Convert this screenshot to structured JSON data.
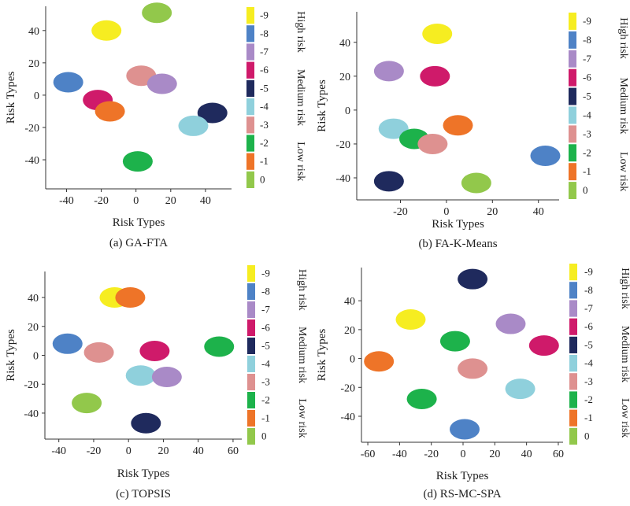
{
  "colors": {
    "level_0": "#92c84b",
    "level_1": "#ee7428",
    "level_2": "#1db24b",
    "level_3": "#de9190",
    "level_4": "#8fd0dc",
    "level_5": "#1f2a5d",
    "level_6": "#cf1a6a",
    "level_7": "#a98ac7",
    "level_8": "#4e82c6",
    "level_9": "#f6ed21"
  },
  "legend": {
    "ticks": [
      "0",
      "-1",
      "-2",
      "-3",
      "-4",
      "-5",
      "-6",
      "-7",
      "-8",
      "-9"
    ],
    "groups": [
      "Low risk",
      "Medium risk",
      "High risk"
    ]
  },
  "chart_data": [
    {
      "type": "scatter",
      "caption": "(a) GA-FTA",
      "xlabel": "Risk Types",
      "ylabel": "Risk Types",
      "xlim": [
        -52,
        55
      ],
      "ylim": [
        -58,
        55
      ],
      "xticks": [
        -40,
        -20,
        0,
        20,
        40
      ],
      "yticks": [
        -40,
        -20,
        0,
        20,
        40
      ],
      "points": [
        {
          "x": 12,
          "y": 51,
          "level": 0
        },
        {
          "x": -17,
          "y": 40,
          "level": 9
        },
        {
          "x": -39,
          "y": 8,
          "level": 8
        },
        {
          "x": 3,
          "y": 12,
          "level": 3
        },
        {
          "x": 15,
          "y": 7,
          "level": 7
        },
        {
          "x": -22,
          "y": -3,
          "level": 6
        },
        {
          "x": -15,
          "y": -10,
          "level": 1
        },
        {
          "x": 44,
          "y": -11,
          "level": 5
        },
        {
          "x": 33,
          "y": -19,
          "level": 4
        },
        {
          "x": 1,
          "y": -41,
          "level": 2
        }
      ]
    },
    {
      "type": "scatter",
      "caption": "(b) FA-K-Means",
      "xlabel": "Risk Types",
      "ylabel": "Risk Types",
      "xlim": [
        -39,
        49
      ],
      "ylim": [
        -53,
        58
      ],
      "xticks": [
        -20,
        0,
        20,
        40
      ],
      "yticks": [
        -40,
        -20,
        0,
        20,
        40
      ],
      "points": [
        {
          "x": -4,
          "y": 45,
          "level": 9
        },
        {
          "x": -25,
          "y": 23,
          "level": 7
        },
        {
          "x": -5,
          "y": 20,
          "level": 6
        },
        {
          "x": 5,
          "y": -9,
          "level": 1
        },
        {
          "x": -23,
          "y": -11,
          "level": 4
        },
        {
          "x": -14,
          "y": -17,
          "level": 2
        },
        {
          "x": -6,
          "y": -20,
          "level": 3
        },
        {
          "x": 43,
          "y": -27,
          "level": 8
        },
        {
          "x": -25,
          "y": -42,
          "level": 5
        },
        {
          "x": 13,
          "y": -43,
          "level": 0
        }
      ]
    },
    {
      "type": "scatter",
      "caption": "(c) TOPSIS",
      "xlabel": "Risk Types",
      "ylabel": "Risk Types",
      "xlim": [
        -48,
        65
      ],
      "ylim": [
        -58,
        58
      ],
      "xticks": [
        -40,
        -20,
        0,
        20,
        40,
        60
      ],
      "yticks": [
        -40,
        -20,
        0,
        20,
        40
      ],
      "points": [
        {
          "x": -8,
          "y": 40,
          "level": 9
        },
        {
          "x": 1,
          "y": 40,
          "level": 1
        },
        {
          "x": -35,
          "y": 8,
          "level": 8
        },
        {
          "x": -17,
          "y": 2,
          "level": 3
        },
        {
          "x": 15,
          "y": 3,
          "level": 6
        },
        {
          "x": 52,
          "y": 6,
          "level": 2
        },
        {
          "x": 7,
          "y": -14,
          "level": 4
        },
        {
          "x": 22,
          "y": -15,
          "level": 7
        },
        {
          "x": -24,
          "y": -33,
          "level": 0
        },
        {
          "x": 10,
          "y": -47,
          "level": 5
        }
      ]
    },
    {
      "type": "scatter",
      "caption": "(d) RS-MC-SPA",
      "xlabel": "Risk Types",
      "ylabel": "Risk Types",
      "xlim": [
        -64,
        63
      ],
      "ylim": [
        -58,
        63
      ],
      "xticks": [
        -60,
        -40,
        -20,
        0,
        20,
        40,
        60
      ],
      "yticks": [
        -40,
        -20,
        0,
        20,
        40
      ],
      "points": [
        {
          "x": 6,
          "y": 55,
          "level": 5
        },
        {
          "x": -33,
          "y": 27,
          "level": 9
        },
        {
          "x": 30,
          "y": 24,
          "level": 7
        },
        {
          "x": -5,
          "y": 12,
          "level": 2
        },
        {
          "x": 51,
          "y": 9,
          "level": 6
        },
        {
          "x": -53,
          "y": -2,
          "level": 1
        },
        {
          "x": 6,
          "y": -7,
          "level": 3
        },
        {
          "x": 36,
          "y": -21,
          "level": 4
        },
        {
          "x": -26,
          "y": -28,
          "level": 2
        },
        {
          "x": 1,
          "y": -49,
          "level": 8
        }
      ]
    }
  ]
}
